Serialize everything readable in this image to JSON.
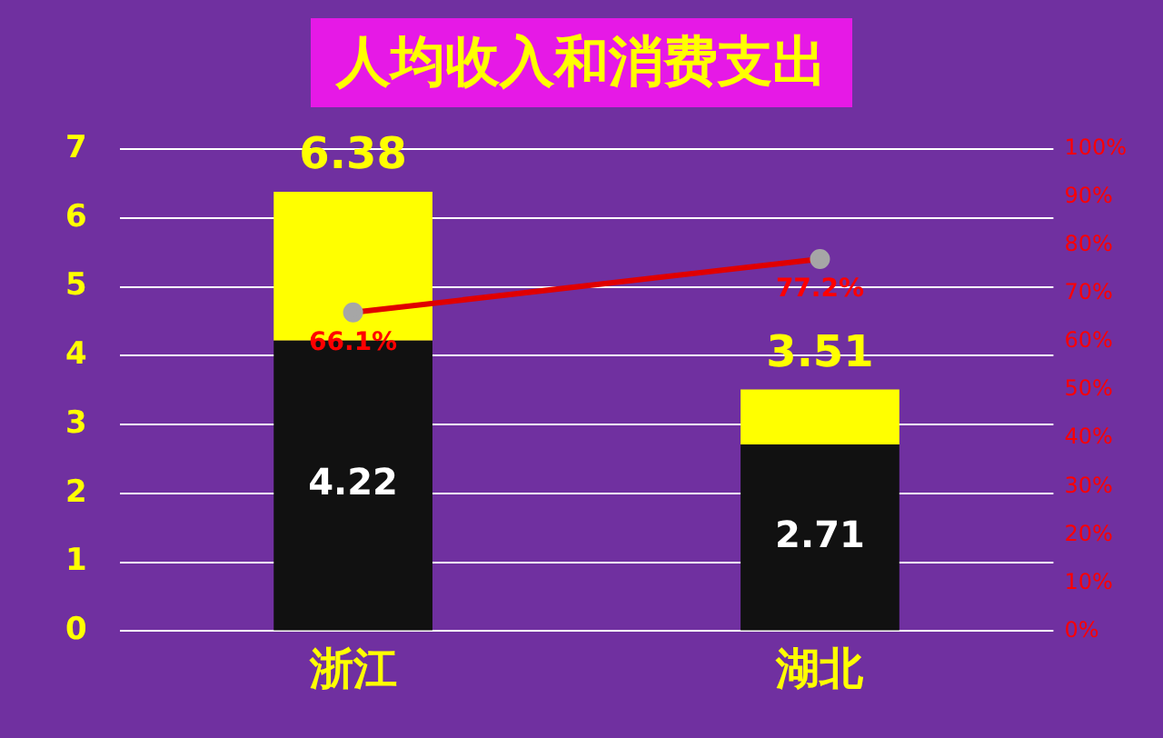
{
  "chart_data": {
    "type": "bar",
    "title": "人均收入和消费支出",
    "categories": [
      "浙江",
      "湖北"
    ],
    "stacked": true,
    "series": [
      {
        "color": "#111111",
        "values": [
          4.22,
          2.71
        ],
        "value_labels": [
          "4.22",
          "2.71"
        ]
      },
      {
        "color": "#ffff00",
        "values": [
          2.16,
          0.8
        ]
      },
      {
        "type": "line",
        "axis": "y2",
        "color": "#e00000",
        "values": [
          66.1,
          77.2
        ],
        "value_labels": [
          "66.1%",
          "77.2%"
        ],
        "marker": "circle"
      }
    ],
    "totals": [
      "6.38",
      "3.51"
    ],
    "ylim": [
      0,
      7
    ],
    "yticks": [
      0,
      1,
      2,
      3,
      4,
      5,
      6,
      7
    ],
    "y2lim": [
      0,
      100
    ],
    "y2ticks": [
      {
        "value": 0,
        "label": "0%"
      },
      {
        "value": 10,
        "label": "10%"
      },
      {
        "value": 20,
        "label": "20%"
      },
      {
        "value": 30,
        "label": "30%"
      },
      {
        "value": 40,
        "label": "40%"
      },
      {
        "value": 50,
        "label": "50%"
      },
      {
        "value": 60,
        "label": "60%"
      },
      {
        "value": 70,
        "label": "70%"
      },
      {
        "value": 80,
        "label": "80%"
      },
      {
        "value": 90,
        "label": "90%"
      },
      {
        "value": 100,
        "label": "100%"
      }
    ],
    "grid": "y",
    "legend": false
  }
}
